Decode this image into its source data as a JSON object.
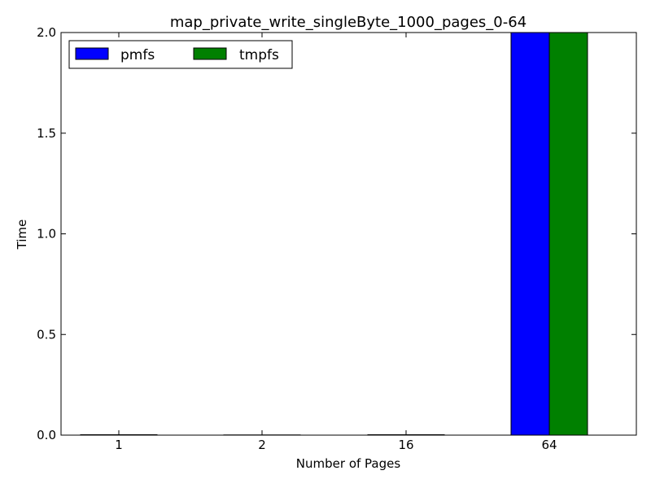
{
  "chart_data": {
    "type": "bar",
    "title": "map_private_write_singleByte_1000_pages_0-64",
    "xlabel": "Number of Pages",
    "ylabel": "Time",
    "categories": [
      "1",
      "2",
      "16",
      "64"
    ],
    "series": [
      {
        "name": "pmfs",
        "color": "#0000ff",
        "values": [
          0.002,
          0.001,
          0.002,
          2.0
        ]
      },
      {
        "name": "tmpfs",
        "color": "#008000",
        "values": [
          0.002,
          0.001,
          0.002,
          2.0
        ]
      }
    ],
    "ylim": [
      0,
      2.0
    ],
    "yticks": [
      "0.0",
      "0.5",
      "1.0",
      "1.5",
      "2.0"
    ],
    "grid": false,
    "legend_position": "top-left"
  }
}
